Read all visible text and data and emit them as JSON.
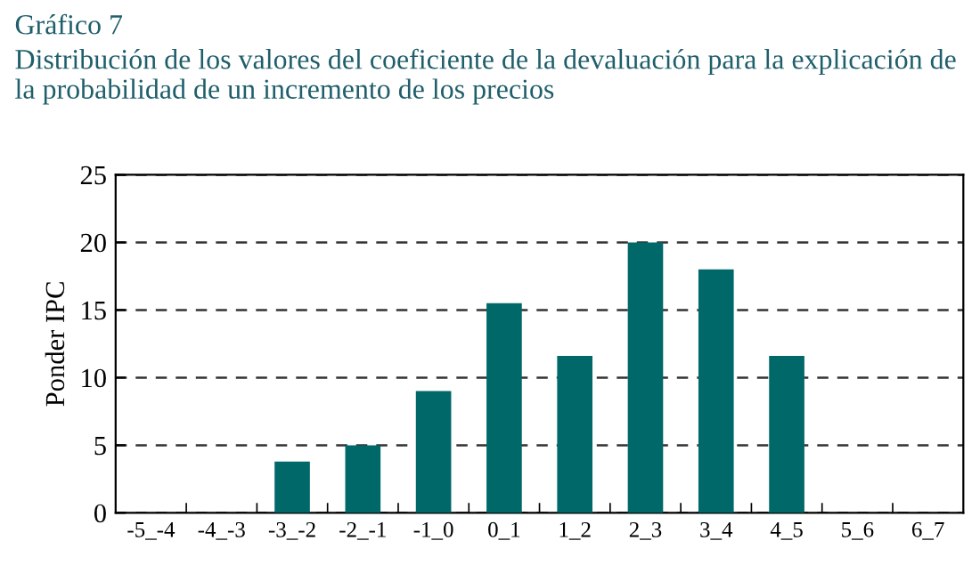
{
  "chart_data": {
    "type": "bar",
    "title": "Gráfico 7",
    "subtitle": "Distribución de los valores del coeficiente de la devaluación para la explicación de la probabilidad de un incremento de los precios",
    "ylabel": "Ponder IPC",
    "categories": [
      "-5_-4",
      "-4_-3",
      "-3_-2",
      "-2_-1",
      "-1_0",
      "0_1",
      "1_2",
      "2_3",
      "3_4",
      "4_5",
      "5_6",
      "6_7"
    ],
    "values": [
      0,
      0,
      3.8,
      5.0,
      9.0,
      15.5,
      11.6,
      20.0,
      18.0,
      11.6,
      0,
      0
    ],
    "color": "#006868",
    "ylim": [
      0,
      25
    ],
    "yticks": [
      0,
      5,
      10,
      15,
      20,
      25
    ],
    "grid": "y",
    "legend": false
  }
}
